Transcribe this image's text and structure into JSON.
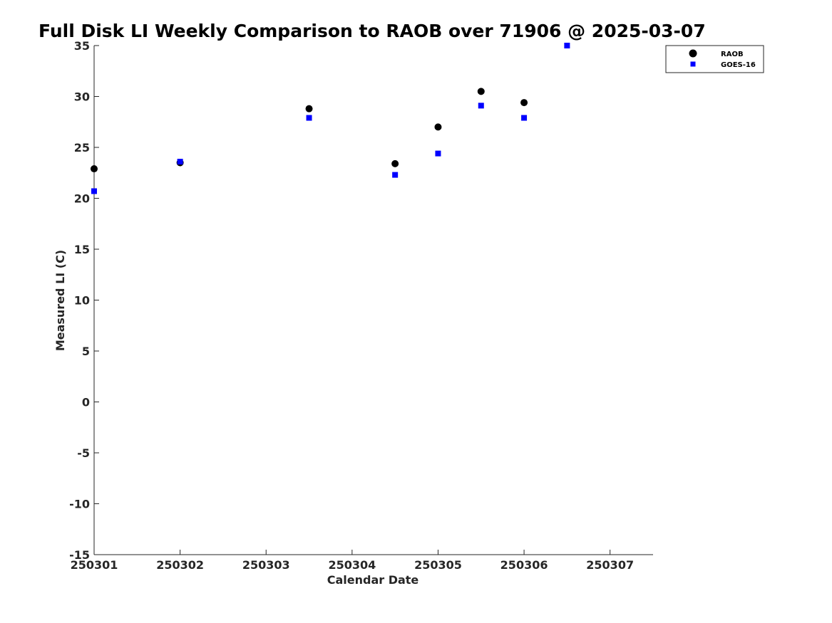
{
  "chart_data": {
    "type": "scatter",
    "title": "Full Disk LI Weekly Comparison to RAOB over 71906 @ 2025-03-07",
    "xlabel": "Calendar Date",
    "ylabel": "Measured LI (C)",
    "x_ticks": [
      "250301",
      "250302",
      "250303",
      "250304",
      "250305",
      "250306",
      "250307"
    ],
    "y_ticks": [
      "35",
      "30",
      "25",
      "20",
      "15",
      "10",
      "5",
      "0",
      "-5",
      "-10",
      "-15"
    ],
    "xlim": [
      1,
      7.5
    ],
    "ylim": [
      -15,
      35
    ],
    "grid": false,
    "legend_position": "top-right",
    "series": [
      {
        "name": "RAOB",
        "marker": "circle",
        "color": "#000000",
        "x": [
          1,
          2,
          3.5,
          4.5,
          5,
          5.5,
          6
        ],
        "y": [
          22.9,
          23.5,
          28.8,
          23.4,
          27.0,
          30.5,
          29.4
        ]
      },
      {
        "name": "GOES-16",
        "marker": "square",
        "color": "#0000ff",
        "x": [
          1,
          2,
          3.5,
          4.5,
          5,
          5.5,
          6,
          6.5
        ],
        "y": [
          20.7,
          23.6,
          27.9,
          22.3,
          24.4,
          29.1,
          27.9,
          35.0
        ]
      }
    ]
  }
}
